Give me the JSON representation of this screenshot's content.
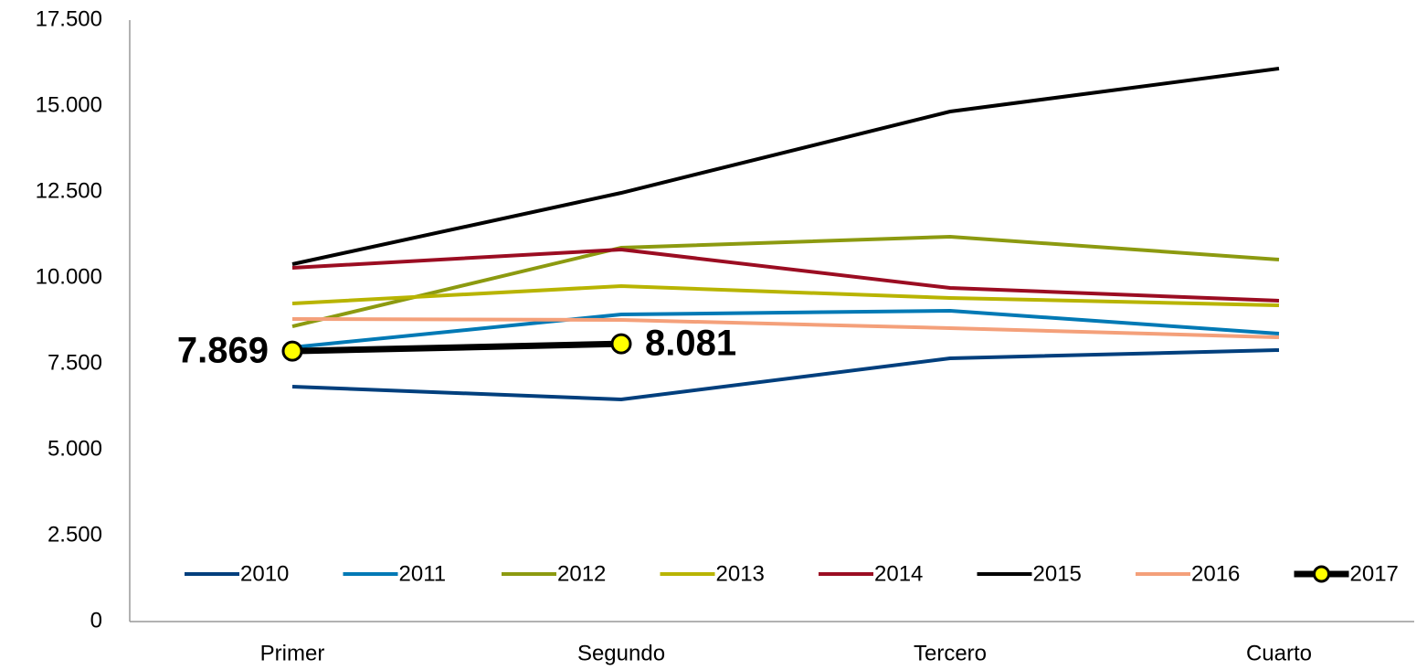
{
  "chart_data": {
    "type": "line",
    "categories": [
      "Primer",
      "Segundo",
      "Tercero",
      "Cuarto"
    ],
    "series": [
      {
        "name": "2010",
        "color": "#003f7d",
        "values": [
          6835,
          6463,
          7660,
          7899
        ]
      },
      {
        "name": "2011",
        "color": "#0079b5",
        "values": [
          7979,
          8936,
          9043,
          8378
        ]
      },
      {
        "name": "2012",
        "color": "#8c9a10",
        "values": [
          8590,
          10878,
          11197,
          10532
        ]
      },
      {
        "name": "2013",
        "color": "#b8b400",
        "values": [
          9255,
          9761,
          9415,
          9202
        ]
      },
      {
        "name": "2014",
        "color": "#9b0d22",
        "values": [
          10293,
          10824,
          9707,
          9335
        ]
      },
      {
        "name": "2015",
        "color": "#000000",
        "values": [
          10399,
          12473,
          14840,
          16090
        ]
      },
      {
        "name": "2016",
        "color": "#f4a07a",
        "values": [
          8803,
          8777,
          8537,
          8271
        ]
      },
      {
        "name": "2017",
        "color": "#000000",
        "marker_color": "#ffff00",
        "values": [
          7869,
          8081,
          null,
          null
        ],
        "value_labels": [
          "7.869",
          "8.081",
          null,
          null
        ]
      }
    ],
    "ylim": [
      0,
      17500
    ],
    "yticks": [
      0,
      {
        "value": 2500,
        "label": "2.500"
      },
      {
        "value": 5000,
        "label": "5.000"
      },
      {
        "value": 7500,
        "label": "7.500"
      },
      {
        "value": 10000,
        "label": "10.000"
      },
      {
        "value": 12500,
        "label": "12.500"
      },
      {
        "value": 15000,
        "label": "15.000"
      },
      {
        "value": 17500,
        "label": "17.500"
      }
    ],
    "grid": false,
    "legend": "bottom"
  }
}
